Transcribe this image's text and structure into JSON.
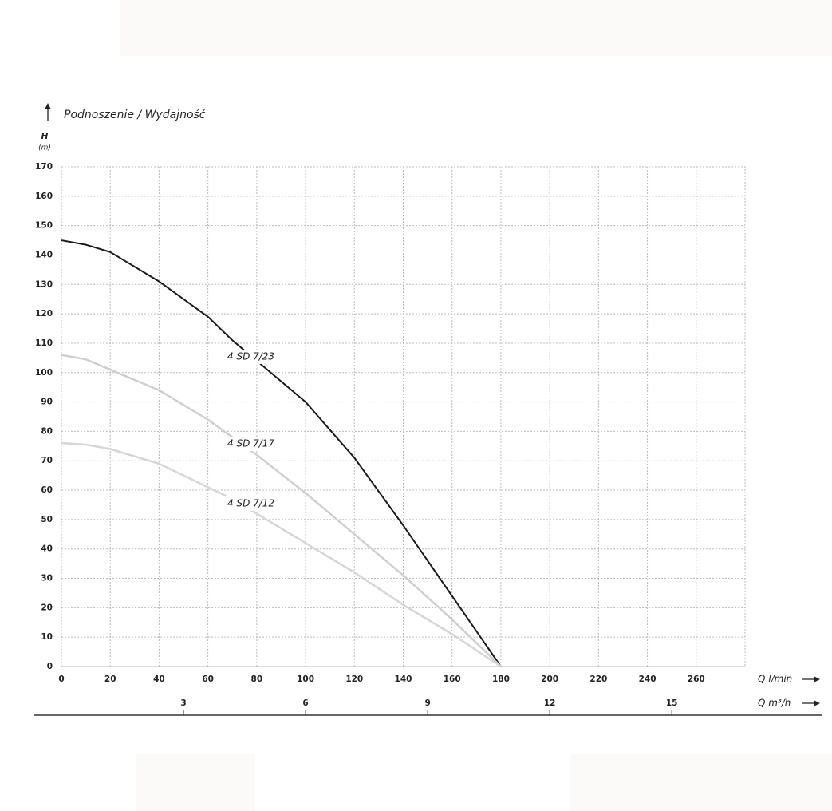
{
  "chart_data": {
    "type": "line",
    "title": "Podnoszenie / Wydajność",
    "y_label": "H",
    "y_unit": "(m)",
    "x_label": "Q l/min",
    "x2_label": "Q m³/h",
    "xlim": [
      0,
      280
    ],
    "xticks": [
      0,
      20,
      40,
      60,
      80,
      100,
      120,
      140,
      160,
      180,
      200,
      220,
      240,
      260
    ],
    "x2lim": [
      0,
      16.8
    ],
    "x2ticks": [
      3,
      6,
      9,
      12,
      15
    ],
    "ylim": [
      0,
      170
    ],
    "yticks": [
      0,
      10,
      20,
      30,
      40,
      50,
      60,
      70,
      80,
      90,
      100,
      110,
      120,
      130,
      140,
      150,
      160,
      170
    ],
    "grid": true,
    "x": [
      0,
      10,
      20,
      40,
      60,
      70,
      80,
      100,
      120,
      140,
      160,
      180
    ],
    "series": [
      {
        "name": "4 SD 7/23",
        "color": "#1a1a1a",
        "values": [
          145,
          143.5,
          141,
          131,
          119,
          111,
          104,
          90,
          71,
          48,
          24,
          0
        ]
      },
      {
        "name": "4 SD 7/17",
        "color": "#cfcfcf",
        "values": [
          106,
          104.5,
          101,
          94,
          84,
          78,
          72,
          59,
          45,
          31,
          16,
          0
        ]
      },
      {
        "name": "4 SD 7/12",
        "color": "#d6d6d6",
        "values": [
          76,
          75.5,
          74,
          69,
          61,
          57,
          52,
          42,
          32,
          21,
          11,
          0
        ]
      }
    ]
  }
}
